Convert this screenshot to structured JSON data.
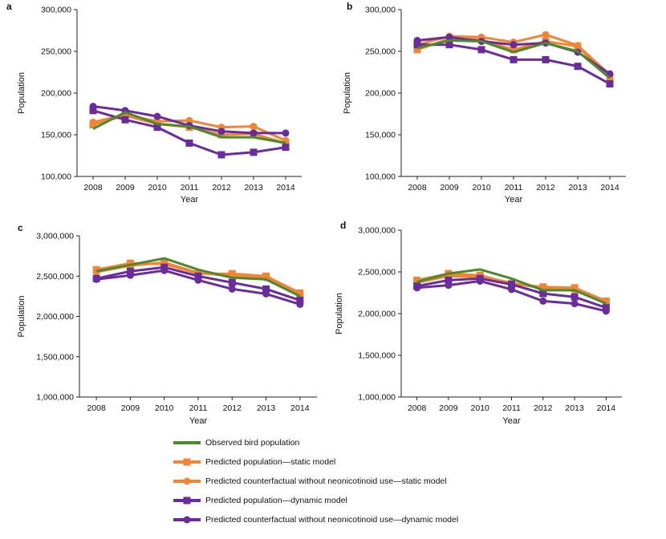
{
  "colors": {
    "observed": "#4a8a2c",
    "static": "#f08534",
    "dynamic": "#6a2b9c"
  },
  "legend": [
    {
      "label": "Observed bird population",
      "marker": "none",
      "color_key": "observed"
    },
    {
      "label": "Predicted population—static model",
      "marker": "square",
      "color_key": "static"
    },
    {
      "label": "Predicted counterfactual without neonicotinoid use—static model",
      "marker": "circle",
      "color_key": "static"
    },
    {
      "label": "Predicted population—dynamic model",
      "marker": "square",
      "color_key": "dynamic"
    },
    {
      "label": "Predicted counterfactual without neonicotinoid use—dynamic model",
      "marker": "circle",
      "color_key": "dynamic"
    }
  ],
  "chart_data": [
    {
      "panel": "a",
      "type": "line",
      "xlabel": "Year",
      "ylabel": "Population",
      "x": [
        2008,
        2009,
        2010,
        2011,
        2012,
        2013,
        2014
      ],
      "ylim": [
        100000,
        300000
      ],
      "yticks": [
        100000,
        150000,
        200000,
        250000,
        300000
      ],
      "yticklabels": [
        "100,000",
        "150,000",
        "200,000",
        "250,000",
        "300,000"
      ],
      "grid": false,
      "legend_position": "bottom",
      "series": [
        {
          "name": "Observed bird population",
          "color_key": "observed",
          "marker": "none",
          "values": [
            157000,
            177000,
            163000,
            160000,
            147000,
            147000,
            140000
          ]
        },
        {
          "name": "Predicted population—static model",
          "color_key": "static",
          "marker": "square",
          "values": [
            162000,
            173000,
            163000,
            159000,
            150000,
            151000,
            140000
          ]
        },
        {
          "name": "Predicted counterfactual without neonicotinoid use—static model",
          "color_key": "static",
          "marker": "circle",
          "values": [
            165000,
            174000,
            166000,
            167000,
            159000,
            160000,
            143000
          ]
        },
        {
          "name": "Predicted population—dynamic model",
          "color_key": "dynamic",
          "marker": "square",
          "values": [
            179000,
            168000,
            159000,
            140000,
            126000,
            129000,
            135000
          ]
        },
        {
          "name": "Predicted counterfactual without neonicotinoid use—dynamic model",
          "color_key": "dynamic",
          "marker": "circle",
          "values": [
            184000,
            179000,
            172000,
            161000,
            154000,
            152000,
            152000
          ]
        }
      ]
    },
    {
      "panel": "b",
      "type": "line",
      "xlabel": "Year",
      "ylabel": "Population",
      "x": [
        2008,
        2009,
        2010,
        2011,
        2012,
        2013,
        2014
      ],
      "ylim": [
        100000,
        300000
      ],
      "yticks": [
        100000,
        150000,
        200000,
        250000,
        300000
      ],
      "yticklabels": [
        "100,000",
        "150,000",
        "200,000",
        "250,000",
        "300,000"
      ],
      "grid": false,
      "legend_position": "bottom",
      "series": [
        {
          "name": "Observed bird population",
          "color_key": "observed",
          "marker": "none",
          "values": [
            254000,
            263000,
            262000,
            249000,
            260000,
            250000,
            218000
          ]
        },
        {
          "name": "Predicted population—static model",
          "color_key": "static",
          "marker": "square",
          "values": [
            252000,
            265000,
            264000,
            252000,
            262000,
            256000,
            218000
          ]
        },
        {
          "name": "Predicted counterfactual without neonicotinoid use—static model",
          "color_key": "static",
          "marker": "circle",
          "values": [
            258000,
            268000,
            267000,
            261000,
            270000,
            257000,
            222000
          ]
        },
        {
          "name": "Predicted population—dynamic model",
          "color_key": "dynamic",
          "marker": "square",
          "values": [
            258000,
            258000,
            252000,
            240000,
            240000,
            232000,
            211000
          ]
        },
        {
          "name": "Predicted counterfactual without neonicotinoid use—dynamic model",
          "color_key": "dynamic",
          "marker": "circle",
          "values": [
            263000,
            267000,
            262000,
            258000,
            260000,
            249000,
            223000
          ]
        }
      ]
    },
    {
      "panel": "c",
      "type": "line",
      "xlabel": "Year",
      "ylabel": "Population",
      "x": [
        2008,
        2009,
        2010,
        2011,
        2012,
        2013,
        2014
      ],
      "ylim": [
        1000000,
        3000000
      ],
      "yticks": [
        1000000,
        1500000,
        2000000,
        2500000,
        3000000
      ],
      "yticklabels": [
        "1,000,000",
        "1,500,000",
        "2,000,000",
        "2,500,000",
        "3,000,000"
      ],
      "grid": false,
      "legend_position": "bottom",
      "series": [
        {
          "name": "Observed bird population",
          "color_key": "observed",
          "marker": "none",
          "values": [
            2560000,
            2640000,
            2720000,
            2580000,
            2480000,
            2460000,
            2250000
          ]
        },
        {
          "name": "Predicted population—static model",
          "color_key": "static",
          "marker": "square",
          "values": [
            2580000,
            2660000,
            2650000,
            2530000,
            2530000,
            2500000,
            2290000
          ]
        },
        {
          "name": "Predicted counterfactual without neonicotinoid use—static model",
          "color_key": "static",
          "marker": "circle",
          "values": [
            2550000,
            2630000,
            2670000,
            2540000,
            2500000,
            2480000,
            2270000
          ]
        },
        {
          "name": "Predicted population—dynamic model",
          "color_key": "dynamic",
          "marker": "square",
          "values": [
            2470000,
            2560000,
            2610000,
            2500000,
            2420000,
            2340000,
            2200000
          ]
        },
        {
          "name": "Predicted counterfactual without neonicotinoid use—dynamic model",
          "color_key": "dynamic",
          "marker": "circle",
          "values": [
            2460000,
            2510000,
            2570000,
            2450000,
            2340000,
            2280000,
            2150000
          ]
        }
      ]
    },
    {
      "panel": "d",
      "type": "line",
      "xlabel": "Year",
      "ylabel": "Population",
      "x": [
        2008,
        2009,
        2010,
        2011,
        2012,
        2013,
        2014
      ],
      "ylim": [
        1000000,
        3000000
      ],
      "yticks": [
        1000000,
        1500000,
        2000000,
        2500000,
        3000000
      ],
      "yticklabels": [
        "1,000,000",
        "1,500,000",
        "2,000,000",
        "2,500,000",
        "3,000,000"
      ],
      "grid": false,
      "legend_position": "bottom",
      "series": [
        {
          "name": "Observed bird population",
          "color_key": "observed",
          "marker": "none",
          "values": [
            2380000,
            2480000,
            2530000,
            2420000,
            2280000,
            2280000,
            2120000
          ]
        },
        {
          "name": "Predicted population—static model",
          "color_key": "static",
          "marker": "square",
          "values": [
            2400000,
            2480000,
            2460000,
            2360000,
            2320000,
            2310000,
            2150000
          ]
        },
        {
          "name": "Predicted counterfactual without neonicotinoid use—static model",
          "color_key": "static",
          "marker": "circle",
          "values": [
            2370000,
            2450000,
            2440000,
            2370000,
            2300000,
            2280000,
            2130000
          ]
        },
        {
          "name": "Predicted population—dynamic model",
          "color_key": "dynamic",
          "marker": "square",
          "values": [
            2330000,
            2400000,
            2420000,
            2350000,
            2240000,
            2200000,
            2070000
          ]
        },
        {
          "name": "Predicted counterfactual without neonicotinoid use—dynamic model",
          "color_key": "dynamic",
          "marker": "circle",
          "values": [
            2310000,
            2340000,
            2390000,
            2290000,
            2150000,
            2120000,
            2030000
          ]
        }
      ]
    }
  ]
}
